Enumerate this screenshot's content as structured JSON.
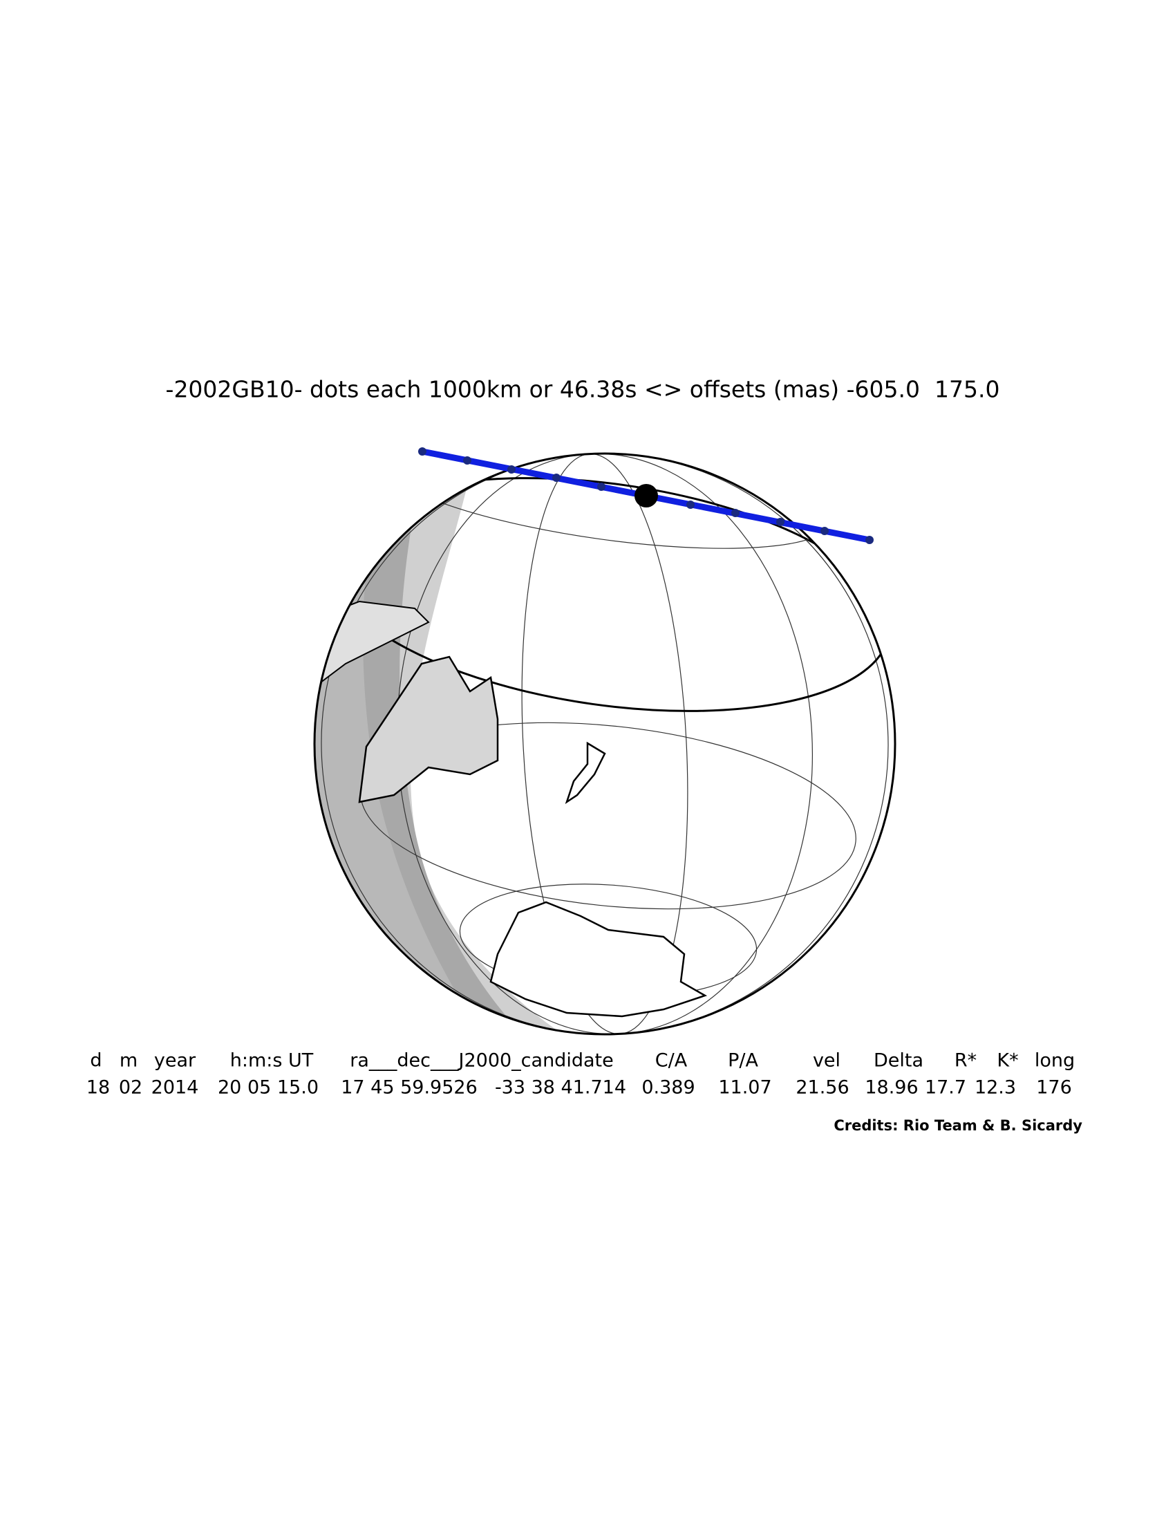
{
  "title": "-2002GB10- dots each 1000km or 46.38s <> offsets (mas) -605.0  175.0",
  "table": {
    "header": [
      "d",
      "m",
      "year",
      "h:m:s UT",
      "ra___dec___J2000_candidate",
      "C/A",
      "P/A",
      "vel",
      "Delta",
      "R*",
      "K*",
      "long"
    ],
    "values": [
      "18",
      "02",
      "2014",
      "20 05 15.0",
      "17 45 59.9526",
      "-33 38 41.714",
      "0.389",
      "11.07",
      "21.56",
      "18.96",
      "17.7",
      "12.3",
      "176"
    ]
  },
  "credits": "Credits: Rio Team & B. Sicardy"
}
